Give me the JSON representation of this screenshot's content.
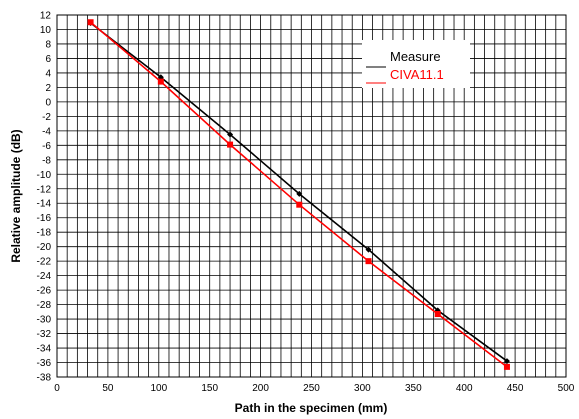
{
  "chart_data": {
    "type": "line",
    "title": "",
    "xlabel": "Path in the specimen (mm)",
    "ylabel": "Relative amplitude (dB)",
    "xlim": [
      0,
      500
    ],
    "ylim": [
      -38,
      12
    ],
    "xticks": [
      0,
      50,
      100,
      150,
      200,
      250,
      300,
      350,
      400,
      450,
      500
    ],
    "yticks": [
      12,
      10,
      8,
      6,
      4,
      2,
      0,
      -2,
      -4,
      -6,
      -8,
      -10,
      -12,
      -14,
      -16,
      -18,
      -20,
      -22,
      -24,
      -26,
      -28,
      -30,
      -32,
      -34,
      -36,
      -38
    ],
    "grid": true,
    "legend_position": "top-right",
    "series": [
      {
        "name": "Measure",
        "color": "#000000",
        "marker": "diamond",
        "x": [
          33,
          102,
          170,
          238,
          306,
          374,
          442
        ],
        "y": [
          10.9,
          3.4,
          -4.5,
          -12.7,
          -20.4,
          -28.8,
          -35.8
        ]
      },
      {
        "name": "CIVA11.1",
        "color": "#ff0000",
        "marker": "square",
        "x": [
          33,
          102,
          170,
          238,
          306,
          374,
          442
        ],
        "y": [
          11.0,
          2.8,
          -5.9,
          -14.2,
          -22.0,
          -29.3,
          -36.6
        ]
      }
    ]
  }
}
